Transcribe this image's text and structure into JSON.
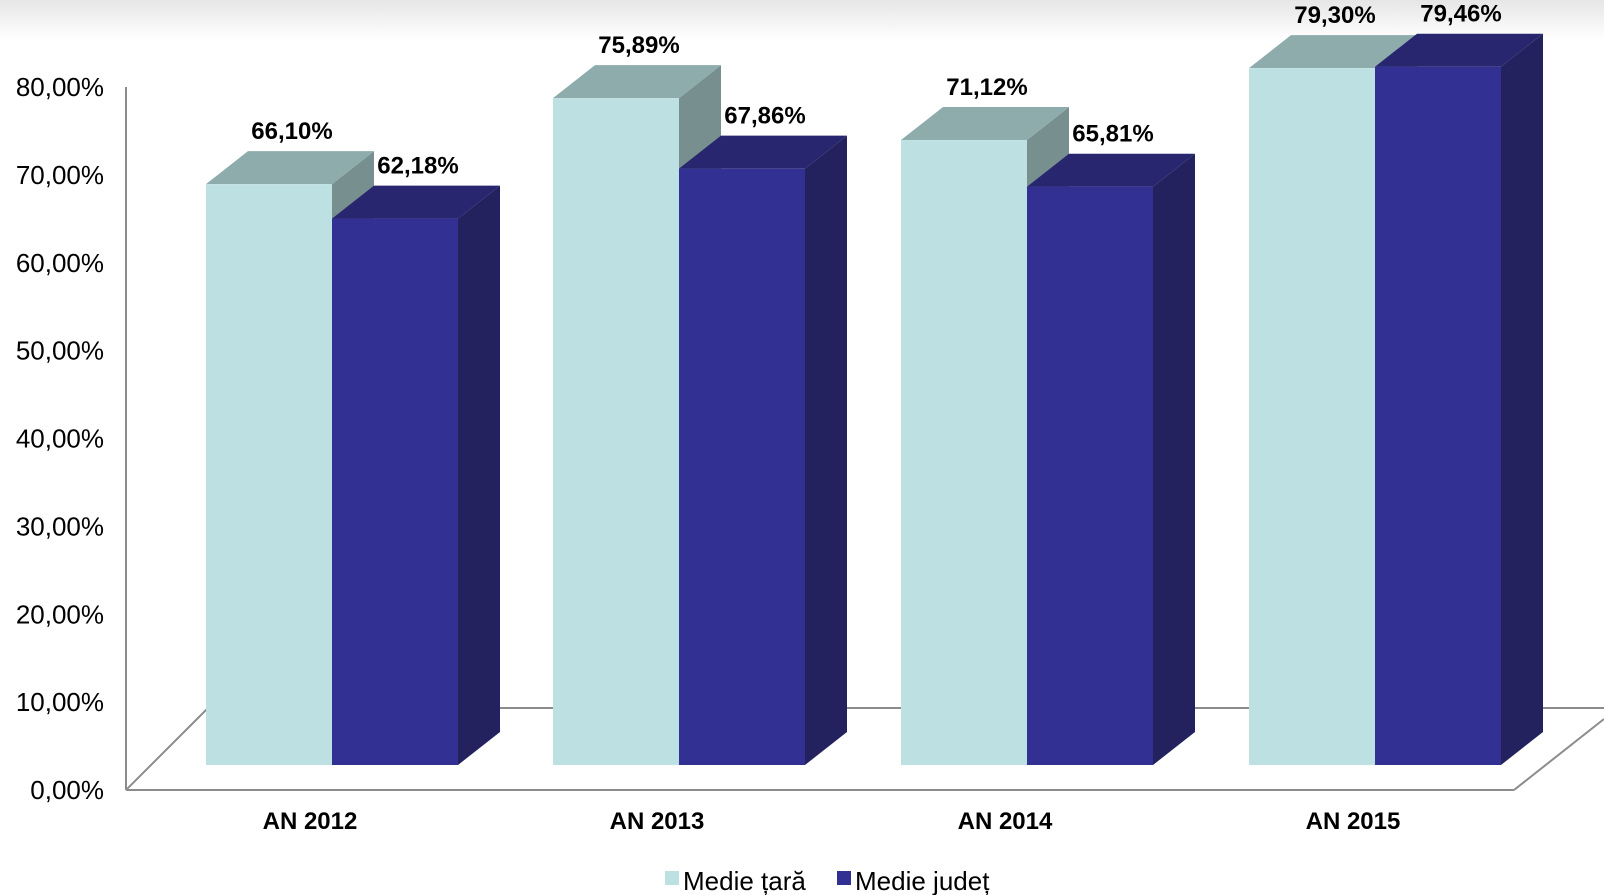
{
  "chart_data": {
    "type": "bar",
    "title": "",
    "xlabel": "",
    "ylabel": "",
    "categories": [
      "AN 2012",
      "AN 2013",
      "AN 2014",
      "AN 2015"
    ],
    "series": [
      {
        "name": "Medie țară",
        "values": [
          66.1,
          75.89,
          71.12,
          79.3
        ],
        "labels": [
          "66,10%",
          "75,89%",
          "71,12%",
          "79,30%"
        ],
        "color": "#bde1e3",
        "top_color": "#8eacac",
        "side_color": "#788f8f"
      },
      {
        "name": "Medie județ",
        "values": [
          62.18,
          67.86,
          65.81,
          79.46
        ],
        "labels": [
          "62,18%",
          "67,86%",
          "65,81%",
          "79,46%"
        ],
        "color": "#323092",
        "top_color": "#27266f",
        "side_color": "#23225f"
      }
    ],
    "ylim": [
      0,
      80
    ],
    "yticks": [
      "0,00%",
      "10,00%",
      "20,00%",
      "30,00%",
      "40,00%",
      "50,00%",
      "60,00%",
      "70,00%",
      "80,00%"
    ],
    "legend_position": "bottom",
    "grid": false,
    "style": "3d-column"
  }
}
